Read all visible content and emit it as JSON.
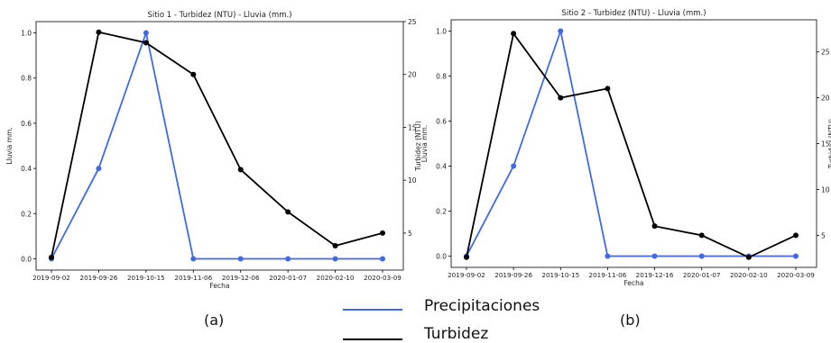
{
  "legend": {
    "precip_label": "Precipitaciones",
    "turb_label": "Turbidez",
    "precip_color": "#4169e1",
    "turb_color": "#000000"
  },
  "sublabels": [
    "(a)",
    "(b)"
  ],
  "chart_data": [
    {
      "type": "line",
      "title": "Sitio 1 - Turbidez (NTU) - Lluvia (mm.)",
      "xlabel": "Fecha",
      "ylabel": "Lluvia mm.",
      "y2label": "Turbidez (NTU)",
      "categories": [
        "2019-09-02",
        "2019-09-26",
        "2019-10-15",
        "2019-11-06",
        "2019-12-06",
        "2020-01-07",
        "2020-02-10",
        "2020-03-09"
      ],
      "ylim": [
        -0.05,
        1.05
      ],
      "yticks": [
        0.0,
        0.2,
        0.4,
        0.6,
        0.8,
        1.0
      ],
      "y2lim": [
        1.5,
        25
      ],
      "y2ticks": [
        5,
        10,
        15,
        20,
        25
      ],
      "series": [
        {
          "name": "Precipitaciones",
          "axis": "left",
          "color": "#4169e1",
          "values": [
            0,
            0.4,
            1.0,
            0,
            0,
            0,
            0,
            0
          ]
        },
        {
          "name": "Turbidez",
          "axis": "right",
          "color": "#000000",
          "values": [
            2.7,
            24.0,
            23.0,
            20.0,
            11.0,
            7.0,
            3.8,
            5.0
          ]
        }
      ]
    },
    {
      "type": "line",
      "title": "Sitio 2 - Turbidez (NTU) - Lluvia (mm.)",
      "xlabel": "Fecha",
      "ylabel": "Lluvia mm.",
      "y2label": "Turbidez (NTU)",
      "categories": [
        "2019-09-02",
        "2019-09-26",
        "2019-10-15",
        "2019-11-06",
        "2019-12-16",
        "2020-01-07",
        "2020-02-10",
        "2020-03-09"
      ],
      "ylim": [
        -0.05,
        1.05
      ],
      "yticks": [
        0.0,
        0.2,
        0.4,
        0.6,
        0.8,
        1.0
      ],
      "y2lim": [
        1.5,
        28.5
      ],
      "y2ticks": [
        5,
        10,
        15,
        20,
        25
      ],
      "series": [
        {
          "name": "Precipitaciones",
          "axis": "left",
          "color": "#4169e1",
          "values": [
            0,
            0.4,
            1.0,
            0,
            0,
            0,
            0,
            0
          ]
        },
        {
          "name": "Turbidez",
          "axis": "right",
          "color": "#000000",
          "values": [
            2.6,
            27.0,
            20.0,
            21.0,
            6.0,
            5.0,
            2.6,
            5.0
          ]
        }
      ]
    }
  ]
}
